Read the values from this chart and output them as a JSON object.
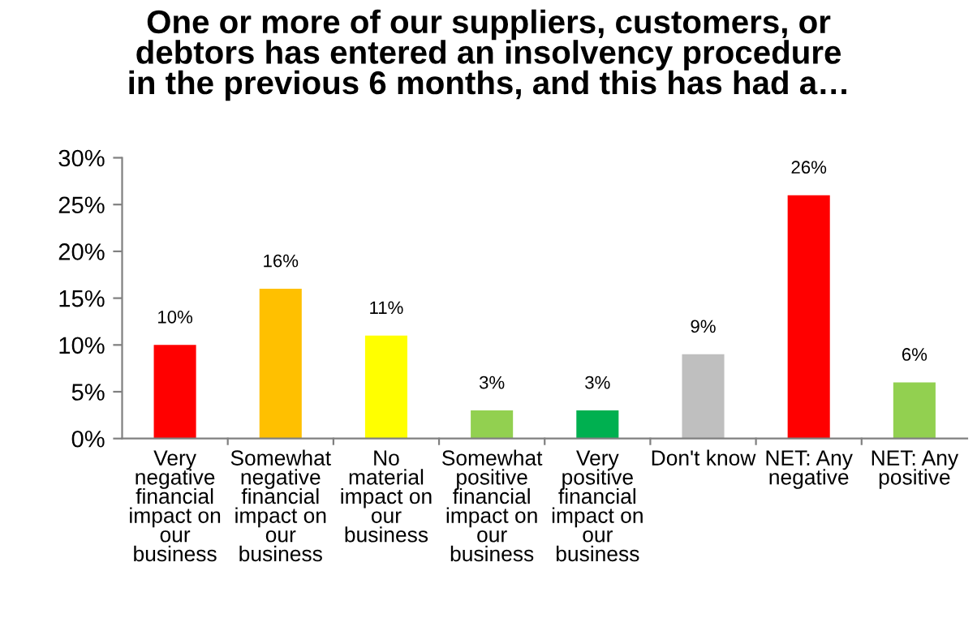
{
  "chart_data": {
    "type": "bar",
    "title": "One or more of our suppliers, customers, or\ndebtors has entered an insolvency procedure\nin the previous 6 months, and this has had a…",
    "categories": [
      "Very\nnegative\nfinancial\nimpact on\nour\nbusiness",
      "Somewhat\nnegative\nfinancial\nimpact on\nour\nbusiness",
      "No\nmaterial\nimpact on\nour\nbusiness",
      "Somewhat\npositive\nfinancial\nimpact on\nour\nbusiness",
      "Very\npositive\nfinancial\nimpact on\nour\nbusiness",
      "Don't know",
      "NET: Any\nnegative",
      "NET: Any\npositive"
    ],
    "values": [
      10,
      16,
      11,
      3,
      3,
      9,
      26,
      6
    ],
    "colors": [
      "#ff0000",
      "#ffc000",
      "#ffff00",
      "#92d050",
      "#00b050",
      "#bfbfbf",
      "#ff0000",
      "#92d050"
    ],
    "value_labels": [
      "10%",
      "16%",
      "11%",
      "3%",
      "3%",
      "9%",
      "26%",
      "6%"
    ],
    "ylim": [
      0,
      30
    ],
    "yticks": [
      {
        "value": 0,
        "label": "0%"
      },
      {
        "value": 5,
        "label": "5%"
      },
      {
        "value": 10,
        "label": "10%"
      },
      {
        "value": 15,
        "label": "15%"
      },
      {
        "value": 20,
        "label": "20%"
      },
      {
        "value": 25,
        "label": "25%"
      },
      {
        "value": 30,
        "label": "30%"
      }
    ],
    "grid": false,
    "legend": false
  }
}
